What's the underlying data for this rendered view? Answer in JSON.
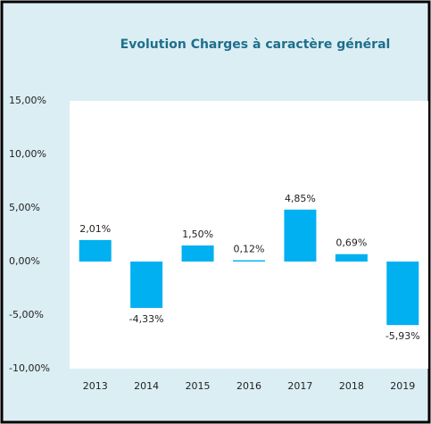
{
  "chart_data": {
    "type": "bar",
    "title": "Evolution Charges à caractère général",
    "categories": [
      "2013",
      "2014",
      "2015",
      "2016",
      "2017",
      "2018",
      "2019"
    ],
    "values": [
      2.01,
      -4.33,
      1.5,
      0.12,
      4.85,
      0.69,
      -5.93
    ],
    "value_labels": [
      "2,01%",
      "-4,33%",
      "1,50%",
      "0,12%",
      "4,85%",
      "0,69%",
      "-5,93%"
    ],
    "color": "#00b0f0",
    "ylim": [
      -10,
      15
    ],
    "yticks": [
      {
        "value": -10,
        "label": "-10,00%"
      },
      {
        "value": -5,
        "label": "-5,00%"
      },
      {
        "value": 0,
        "label": "0,00%"
      },
      {
        "value": 5,
        "label": "5,00%"
      },
      {
        "value": 10,
        "label": "10,00%"
      },
      {
        "value": 15,
        "label": "15,00%"
      }
    ],
    "grid": false
  }
}
